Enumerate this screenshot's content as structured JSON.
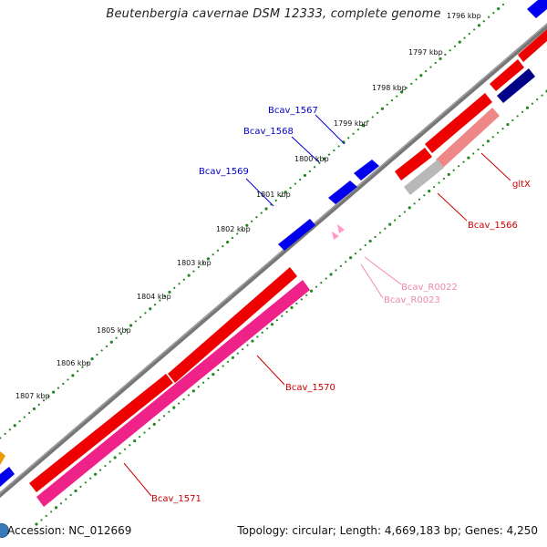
{
  "title": "Beutenbergia cavernae DSM 12333, complete genome",
  "footer": {
    "accession": "Accession: NC_012669",
    "topology": "Topology: circular; Length: 4,669,183 bp; Genes: 4,250"
  },
  "kbp_labels": [
    "1796 kbp",
    "1797 kbp",
    "1798 kbp",
    "1799 kbp",
    "1800 kbp",
    "1801 kbp",
    "1802 kbp",
    "1803 kbp",
    "1804 kbp",
    "1805 kbp",
    "1806 kbp",
    "1807 kbp"
  ],
  "gene_labels": [
    {
      "text": "Bcav_1567",
      "color": "#0000cc"
    },
    {
      "text": "Bcav_1568",
      "color": "#0000cc"
    },
    {
      "text": "Bcav_1569",
      "color": "#0000cc"
    },
    {
      "text": "gltX",
      "color": "#cc0000"
    },
    {
      "text": "Bcav_1566",
      "color": "#cc0000"
    },
    {
      "text": "Bcav_R0022",
      "color": "#ee88aa"
    },
    {
      "text": "Bcav_R0023",
      "color": "#ee88aa"
    },
    {
      "text": "Bcav_1570",
      "color": "#cc0000"
    },
    {
      "text": "Bcav_1571",
      "color": "#cc0000"
    }
  ],
  "colors": {
    "forward_gene": "#0000ee",
    "reverse_gene": "#ee0000",
    "dark_gene": "#000088",
    "pink_gene": "#ee2288",
    "light_red_gene": "#ee8888",
    "grey_gene": "#b8b8b8",
    "rna": "#ff99cc",
    "backbone": "#777777",
    "tick_dots": "#228822",
    "orange_gene": "#ee9900"
  }
}
